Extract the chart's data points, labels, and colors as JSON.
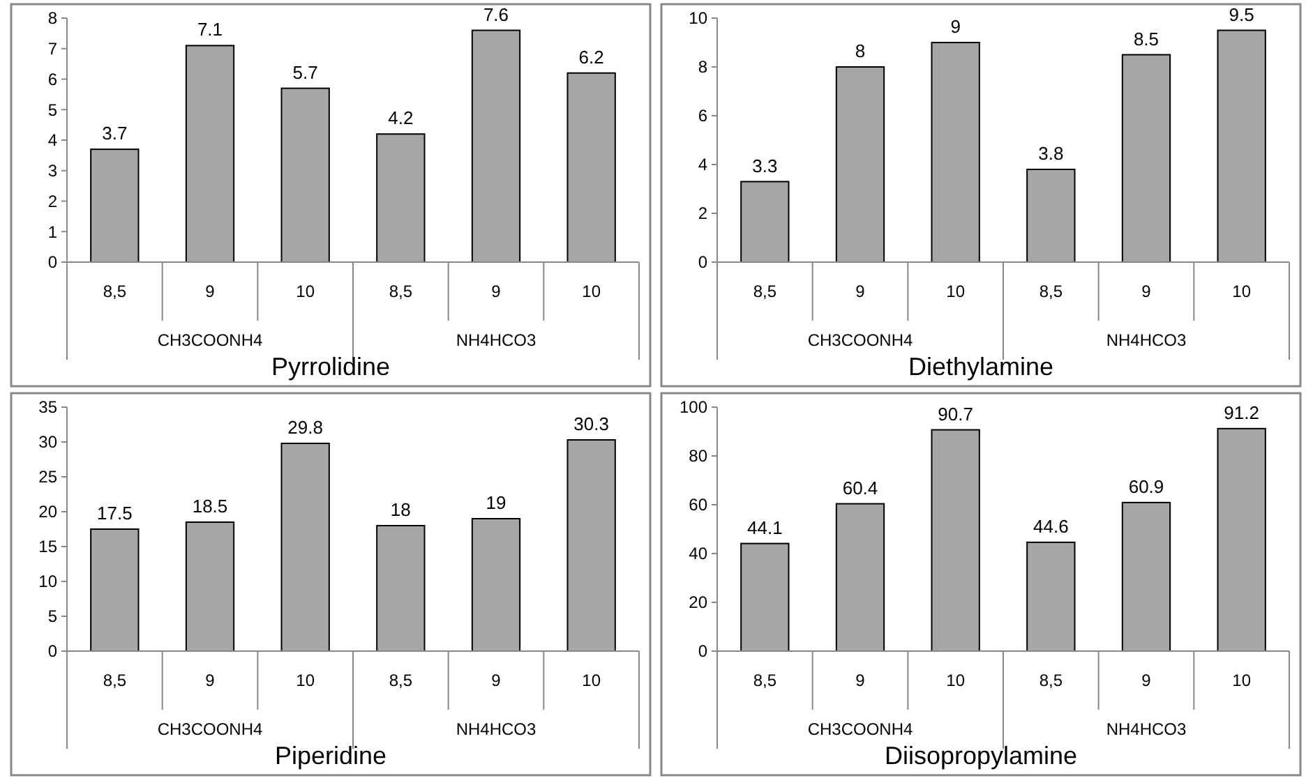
{
  "chart_data": [
    {
      "type": "bar",
      "title": "Pyrrolidine",
      "categories": [
        "8,5",
        "9",
        "10",
        "8,5",
        "9",
        "10"
      ],
      "annotations": [
        "CH3COONH4",
        "NH4HCO3"
      ],
      "values": [
        3.7,
        7.1,
        5.7,
        4.2,
        7.6,
        6.2
      ],
      "color": "#a6a6a6",
      "ylim": [
        0,
        8
      ],
      "yticks": [
        0,
        1,
        2,
        3,
        4,
        5,
        6,
        7,
        8
      ],
      "data_labels": true,
      "grid": false
    },
    {
      "type": "bar",
      "title": "Diethylamine",
      "categories": [
        "8,5",
        "9",
        "10",
        "8,5",
        "9",
        "10"
      ],
      "annotations": [
        "CH3COONH4",
        "NH4HCO3"
      ],
      "values": [
        3.3,
        8,
        9,
        3.8,
        8.5,
        9.5
      ],
      "color": "#a6a6a6",
      "ylim": [
        0,
        10
      ],
      "yticks": [
        0,
        2,
        4,
        6,
        8,
        10
      ],
      "data_labels": true,
      "grid": false
    },
    {
      "type": "bar",
      "title": "Piperidine",
      "categories": [
        "8,5",
        "9",
        "10",
        "8,5",
        "9",
        "10"
      ],
      "annotations": [
        "CH3COONH4",
        "NH4HCO3"
      ],
      "values": [
        17.5,
        18.5,
        29.8,
        18,
        19,
        30.3
      ],
      "color": "#a6a6a6",
      "ylim": [
        0,
        35
      ],
      "yticks": [
        0,
        5,
        10,
        15,
        20,
        25,
        30,
        35
      ],
      "data_labels": true,
      "grid": false
    },
    {
      "type": "bar",
      "title": "Diisopropylamine",
      "categories": [
        "8,5",
        "9",
        "10",
        "8,5",
        "9",
        "10"
      ],
      "annotations": [
        "CH3COONH4",
        "NH4HCO3"
      ],
      "values": [
        44.1,
        60.4,
        90.7,
        44.6,
        60.9,
        91.2
      ],
      "color": "#a6a6a6",
      "ylim": [
        0,
        100
      ],
      "yticks": [
        0,
        20,
        40,
        60,
        80,
        100
      ],
      "data_labels": true,
      "grid": false
    }
  ]
}
